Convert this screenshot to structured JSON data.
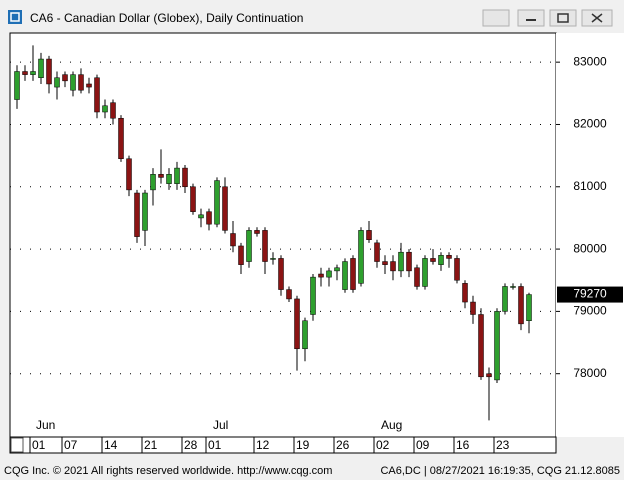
{
  "window_title": "CA6 - Canadian Dollar (Globex), Daily Continuation",
  "footer_left": "CQG Inc. © 2021 All rights reserved worldwide. http://www.cqg.com",
  "footer_right": "CA6,DC | 08/27/2021 16:19:35, CQG 21.12.8085",
  "chart_data": {
    "type": "candlestick",
    "categories": [
      null,
      null,
      "01",
      null,
      null,
      null,
      "07",
      null,
      null,
      null,
      null,
      "14",
      null,
      null,
      null,
      null,
      "21",
      null,
      null,
      null,
      null,
      "28",
      null,
      null,
      "01",
      null,
      null,
      null,
      null,
      null,
      "12",
      null,
      null,
      null,
      null,
      "19",
      null,
      null,
      null,
      null,
      "26",
      null,
      null,
      null,
      null,
      "02",
      null,
      null,
      null,
      null,
      "09",
      null,
      null,
      null,
      null,
      "16",
      null,
      null,
      null,
      null,
      "23",
      null,
      null,
      null,
      null
    ],
    "months": [
      "Jun",
      "Jul",
      "Aug"
    ],
    "open": [
      82400,
      82850,
      82800,
      82750,
      83050,
      82600,
      82800,
      82550,
      82800,
      82650,
      82750,
      82200,
      82350,
      82100,
      81450,
      80900,
      80300,
      80950,
      81200,
      81050,
      81050,
      81300,
      81000,
      80500,
      80600,
      80400,
      81000,
      80250,
      80050,
      79800,
      80300,
      80300,
      79850,
      79850,
      79350,
      79200,
      78400,
      78950,
      79600,
      79550,
      79650,
      79350,
      79850,
      79450,
      80300,
      80100,
      79800,
      79800,
      79650,
      79950,
      79700,
      79400,
      79850,
      79750,
      79900,
      79850,
      79450,
      79150,
      78950,
      78000,
      77900,
      79000,
      79400,
      79400,
      78850
    ],
    "high": [
      82950,
      82950,
      83270,
      83150,
      83100,
      82850,
      82850,
      82850,
      82900,
      82750,
      82800,
      82400,
      82400,
      82150,
      81500,
      80950,
      80950,
      81300,
      81600,
      81300,
      81400,
      81350,
      81050,
      80650,
      80650,
      81150,
      81150,
      80450,
      80100,
      80350,
      80350,
      80350,
      79950,
      79900,
      79400,
      79250,
      78900,
      79600,
      79700,
      79700,
      79750,
      79850,
      79900,
      80350,
      80450,
      80150,
      79900,
      79900,
      80100,
      80000,
      79750,
      79900,
      80000,
      79950,
      79950,
      79900,
      79500,
      79250,
      79050,
      78100,
      79050,
      79450,
      79450,
      79450,
      79300
    ],
    "low": [
      82250,
      82700,
      82700,
      82650,
      82500,
      82400,
      82600,
      82450,
      82500,
      82500,
      82100,
      82100,
      82000,
      81400,
      80850,
      80100,
      80050,
      80700,
      81050,
      80950,
      80950,
      80900,
      80550,
      80350,
      80300,
      80350,
      80250,
      79950,
      79600,
      79700,
      80200,
      79600,
      79750,
      79250,
      79150,
      78050,
      78200,
      78850,
      79400,
      79400,
      79500,
      79300,
      79300,
      79400,
      80100,
      79700,
      79600,
      79500,
      79550,
      79550,
      79350,
      79350,
      79750,
      79650,
      79700,
      79450,
      79050,
      78800,
      77900,
      77250,
      77850,
      78950,
      79350,
      78700,
      78650
    ],
    "close": [
      82850,
      82800,
      82850,
      83050,
      82650,
      82750,
      82700,
      82800,
      82550,
      82600,
      82200,
      82300,
      82100,
      81450,
      80950,
      80200,
      80900,
      81200,
      81150,
      81200,
      81300,
      81000,
      80600,
      80550,
      80400,
      81100,
      80300,
      80050,
      79750,
      80300,
      80250,
      79800,
      79850,
      79350,
      79200,
      78400,
      78850,
      79550,
      79550,
      79650,
      79700,
      79800,
      79350,
      80300,
      80150,
      79800,
      79750,
      79650,
      79950,
      79650,
      79400,
      79850,
      79800,
      79900,
      79850,
      79500,
      79150,
      78950,
      77950,
      77950,
      79000,
      79400,
      79400,
      78800,
      79270
    ],
    "up_color": "#2ea02e",
    "down_color": "#8b1414",
    "ylim": [
      76984,
      83468
    ],
    "yticks": [
      78000,
      79000,
      80000,
      81000,
      82000,
      83000
    ],
    "grid": true
  }
}
